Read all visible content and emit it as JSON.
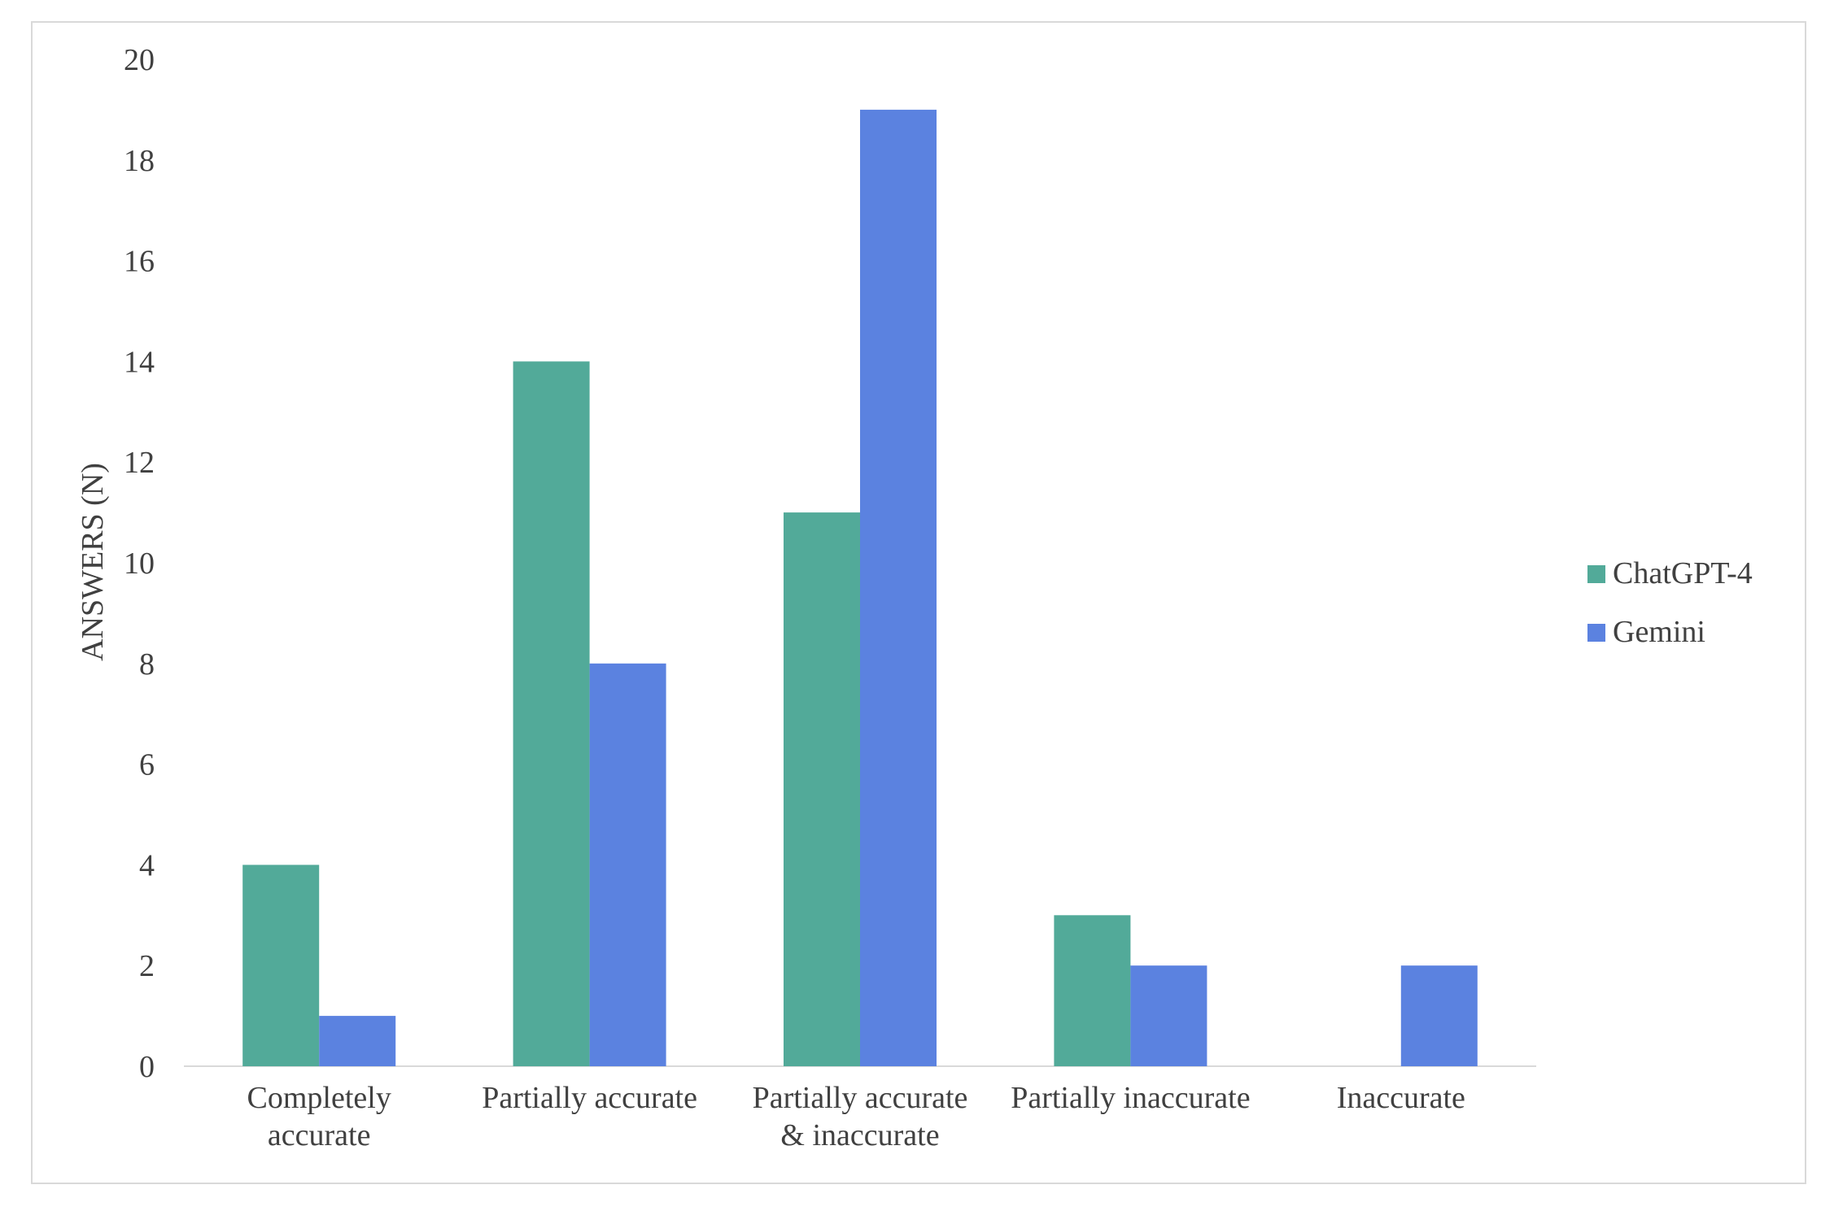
{
  "chart_data": {
    "type": "bar",
    "categories": [
      [
        "Completely",
        "accurate"
      ],
      [
        "Partially accurate"
      ],
      [
        "Partially accurate",
        "& inaccurate"
      ],
      [
        "Partially inaccurate"
      ],
      [
        "Inaccurate"
      ]
    ],
    "series": [
      {
        "name": "ChatGPT-4",
        "color": "#52aa99",
        "values": [
          4,
          14,
          11,
          3,
          0
        ]
      },
      {
        "name": "Gemini",
        "color": "#5b82e0",
        "values": [
          1,
          8,
          19,
          2,
          2
        ]
      }
    ],
    "title": "",
    "xlabel": "",
    "ylabel": "ANSWERS (N)",
    "ylim": [
      0,
      20
    ],
    "yticks": [
      0,
      2,
      4,
      6,
      8,
      10,
      12,
      14,
      16,
      18,
      20
    ],
    "grid": false,
    "legend": "right"
  }
}
